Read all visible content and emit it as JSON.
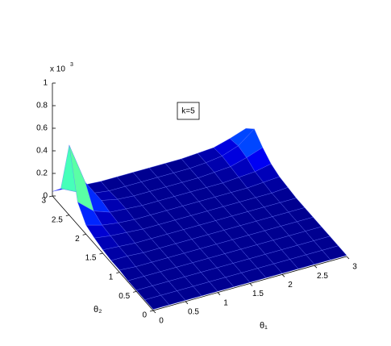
{
  "chart_data": {
    "type": "surface",
    "xlabel": "θ₁",
    "ylabel": "θ₂",
    "z_multiplier": "x 10",
    "z_exponent": "3",
    "annotation": "k=5",
    "x": [
      0,
      0.25,
      0.5,
      0.75,
      1,
      1.25,
      1.5,
      1.75,
      2,
      2.25,
      2.5,
      2.75,
      3
    ],
    "y": [
      0,
      0.25,
      0.5,
      0.75,
      1,
      1.25,
      1.5,
      1.75,
      2,
      2.25,
      2.5,
      2.75,
      3
    ],
    "z": [
      [
        0.01,
        0.01,
        0.01,
        0.01,
        0.01,
        0.01,
        0.01,
        0.01,
        0.01,
        0.01,
        0.01,
        0.01,
        0.01
      ],
      [
        0.01,
        0.01,
        0.01,
        0.01,
        0.01,
        0.01,
        0.01,
        0.01,
        0.01,
        0.01,
        0.01,
        0.01,
        0.01
      ],
      [
        0.01,
        0.01,
        0.01,
        0.01,
        0.01,
        0.01,
        0.01,
        0.01,
        0.01,
        0.01,
        0.01,
        0.01,
        0.01
      ],
      [
        0.01,
        0.01,
        0.01,
        0.01,
        0.01,
        0.01,
        0.01,
        0.01,
        0.01,
        0.01,
        0.01,
        0.01,
        0.01
      ],
      [
        0.02,
        0.01,
        0.01,
        0.01,
        0.01,
        0.01,
        0.01,
        0.01,
        0.01,
        0.01,
        0.01,
        0.01,
        0.01
      ],
      [
        0.02,
        0.02,
        0.01,
        0.01,
        0.01,
        0.01,
        0.01,
        0.01,
        0.01,
        0.01,
        0.01,
        0.01,
        0.01
      ],
      [
        0.03,
        0.02,
        0.01,
        0.01,
        0.01,
        0.01,
        0.01,
        0.01,
        0.01,
        0.01,
        0.01,
        0.01,
        0.01
      ],
      [
        0.05,
        0.03,
        0.02,
        0.01,
        0.01,
        0.01,
        0.01,
        0.01,
        0.01,
        0.01,
        0.01,
        0.01,
        0.02
      ],
      [
        0.08,
        0.04,
        0.02,
        0.01,
        0.01,
        0.01,
        0.01,
        0.01,
        0.01,
        0.01,
        0.01,
        0.02,
        0.03
      ],
      [
        0.2,
        0.08,
        0.03,
        0.02,
        0.01,
        0.01,
        0.01,
        0.01,
        0.01,
        0.01,
        0.02,
        0.03,
        0.06
      ],
      [
        0.62,
        0.25,
        0.05,
        0.02,
        0.01,
        0.01,
        0.01,
        0.01,
        0.01,
        0.02,
        0.03,
        0.07,
        0.12
      ],
      [
        0.15,
        0.08,
        0.03,
        0.01,
        0.01,
        0.01,
        0.01,
        0.01,
        0.01,
        0.02,
        0.04,
        0.09,
        0.2
      ],
      [
        0.04,
        0.03,
        0.02,
        0.01,
        0.01,
        0.01,
        0.01,
        0.01,
        0.01,
        0.02,
        0.03,
        0.07,
        0.12
      ]
    ],
    "xlim": [
      0,
      3
    ],
    "ylim": [
      0,
      3
    ],
    "zlim": [
      0,
      1
    ],
    "xticks": [
      0,
      0.5,
      1,
      1.5,
      2,
      2.5,
      3
    ],
    "yticks": [
      0,
      0.5,
      1,
      1.5,
      2,
      2.5,
      3
    ],
    "zticks": [
      0,
      0.2,
      0.4,
      0.6,
      0.8,
      1
    ],
    "colormap": "jet"
  }
}
